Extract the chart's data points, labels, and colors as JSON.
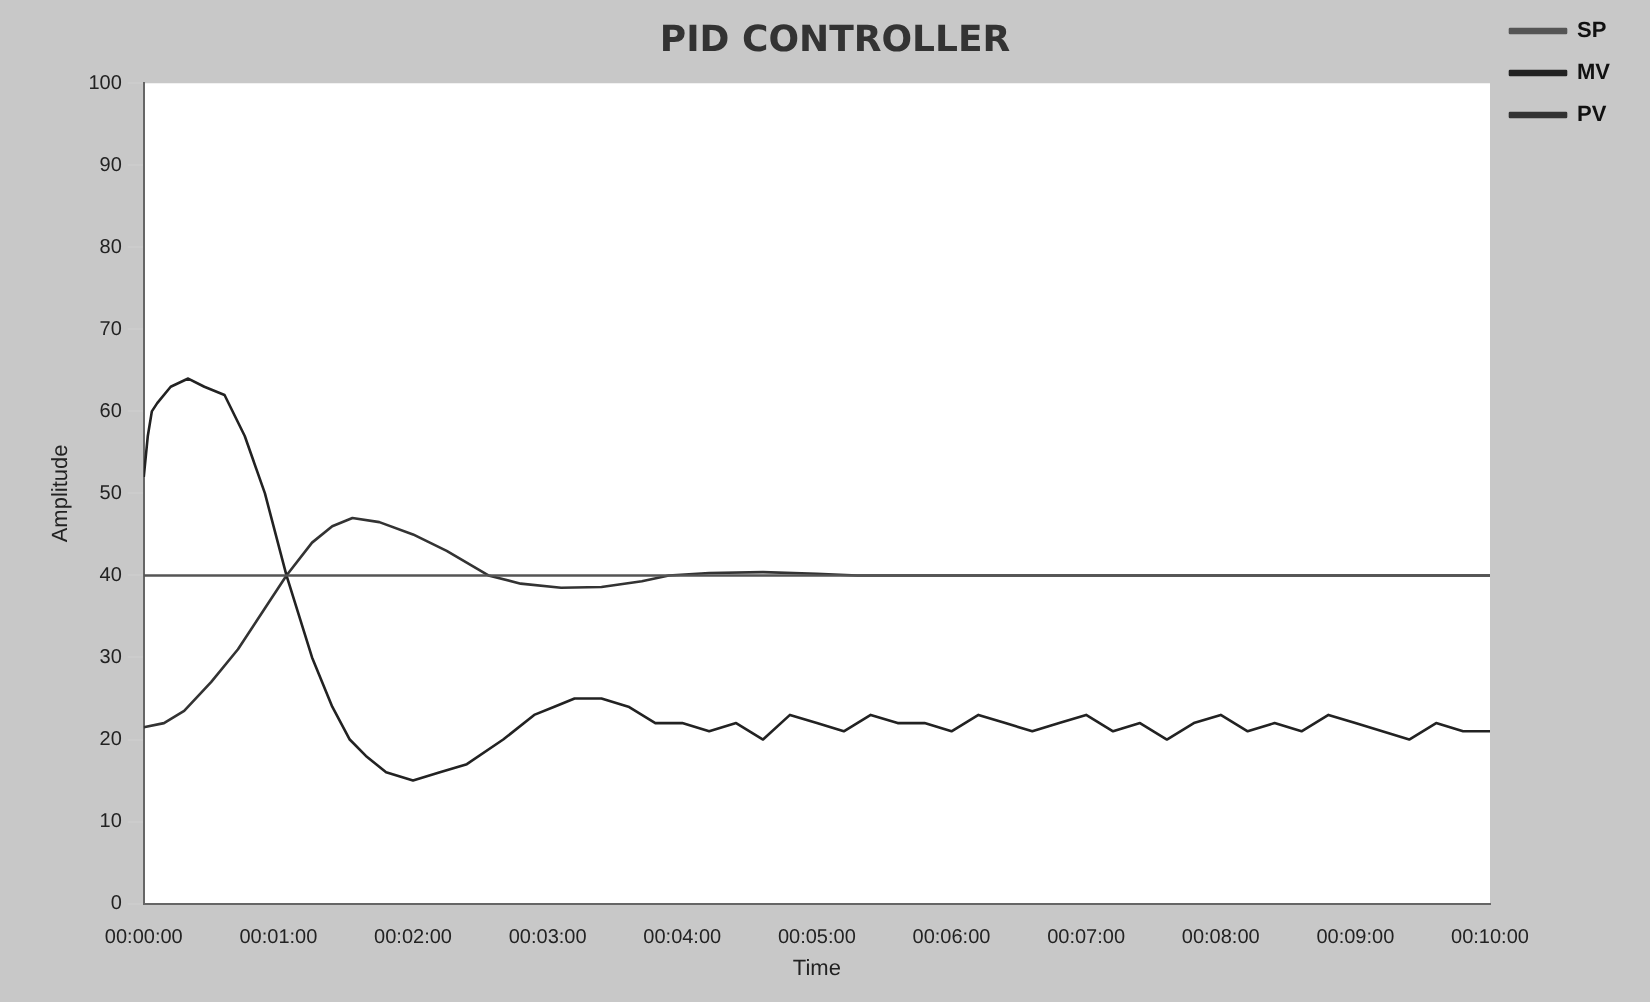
{
  "chart_data": {
    "type": "line",
    "title": "PID CONTROLLER",
    "xlabel": "Time",
    "ylabel": "Amplitude",
    "xlim": [
      0,
      10
    ],
    "ylim": [
      0,
      100
    ],
    "xticks": [
      {
        "value": 0,
        "label": "00:00:00"
      },
      {
        "value": 1,
        "label": "00:01:00"
      },
      {
        "value": 2,
        "label": "00:02:00"
      },
      {
        "value": 3,
        "label": "00:03:00"
      },
      {
        "value": 4,
        "label": "00:04:00"
      },
      {
        "value": 5,
        "label": "00:05:00"
      },
      {
        "value": 6,
        "label": "00:06:00"
      },
      {
        "value": 7,
        "label": "00:07:00"
      },
      {
        "value": 8,
        "label": "00:08:00"
      },
      {
        "value": 9,
        "label": "00:09:00"
      },
      {
        "value": 10,
        "label": "00:10:00"
      }
    ],
    "yticks": [
      0,
      10,
      20,
      30,
      40,
      50,
      60,
      70,
      80,
      90,
      100
    ],
    "grid": false,
    "legend": "top right",
    "marker": "none",
    "line_style": "solid",
    "series": [
      {
        "name": "SP",
        "color": "#555555",
        "x": [
          0,
          10
        ],
        "values": [
          40,
          40
        ]
      },
      {
        "name": "MV",
        "color": "#222222",
        "x": [
          0,
          0.03,
          0.06,
          0.1,
          0.2,
          0.33,
          0.45,
          0.6,
          0.75,
          0.9,
          1.06,
          1.25,
          1.4,
          1.53,
          1.65,
          1.8,
          2,
          2.2,
          2.4,
          2.67,
          2.9,
          3.05,
          3.2,
          3.4,
          3.6,
          3.8,
          4,
          4.2,
          4.4,
          4.6,
          4.8,
          5,
          5.2,
          5.4,
          5.6,
          5.8,
          6,
          6.2,
          6.4,
          6.6,
          6.8,
          7,
          7.2,
          7.4,
          7.6,
          7.8,
          8,
          8.2,
          8.4,
          8.6,
          8.8,
          9,
          9.2,
          9.4,
          9.6,
          9.8,
          10
        ],
        "values": [
          52,
          57,
          60,
          61,
          63,
          64,
          63,
          62,
          57,
          50,
          40,
          30,
          24,
          20,
          18,
          16,
          15,
          16,
          17,
          20,
          23,
          24,
          25,
          25,
          24,
          22,
          22,
          21,
          22,
          20,
          23,
          22,
          21,
          23,
          22,
          22,
          21,
          23,
          22,
          21,
          22,
          23,
          21,
          22,
          20,
          22,
          23,
          21,
          22,
          21,
          23,
          22,
          21,
          20,
          22,
          21,
          21
        ]
      },
      {
        "name": "PV",
        "color": "#333333",
        "x": [
          0,
          0.15,
          0.3,
          0.5,
          0.7,
          0.9,
          1.06,
          1.25,
          1.4,
          1.55,
          1.75,
          2,
          2.25,
          2.56,
          2.8,
          3.1,
          3.4,
          3.7,
          3.9,
          4.2,
          4.6,
          5,
          5.3,
          5.8,
          6.5,
          7.5,
          8.5,
          9.5,
          10
        ],
        "values": [
          21.5,
          22,
          23.5,
          27,
          31,
          36,
          40,
          44,
          46,
          47,
          46.5,
          45,
          43,
          40,
          39,
          38.5,
          38.6,
          39.3,
          40,
          40.3,
          40.4,
          40.2,
          40,
          40,
          40,
          40,
          40,
          40,
          40
        ]
      }
    ]
  }
}
